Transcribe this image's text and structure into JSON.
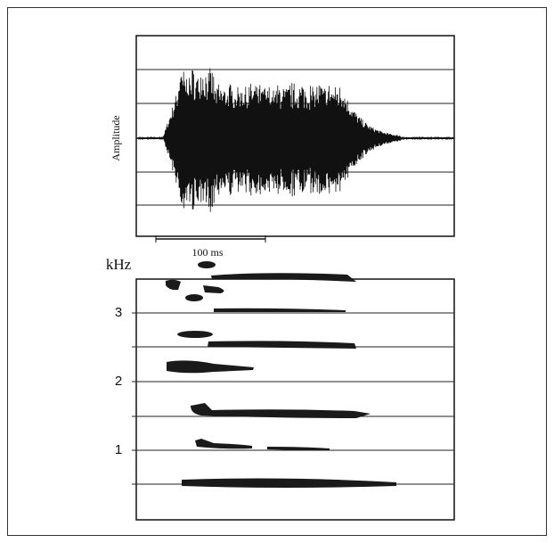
{
  "waveform": {
    "y_label": "Amplitude",
    "scale_bar_label": "100 ms"
  },
  "spectrogram": {
    "unit_label": "kHz",
    "tick_labels": [
      3,
      2,
      1
    ]
  }
}
